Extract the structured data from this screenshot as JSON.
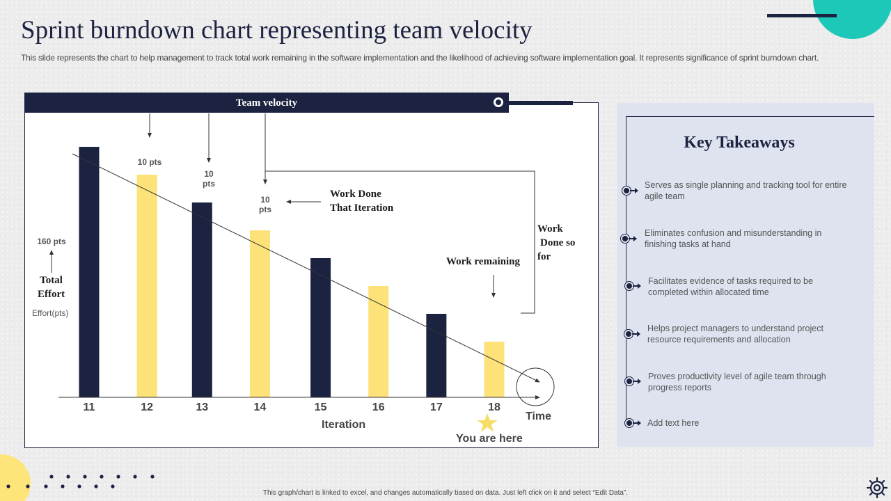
{
  "header": {
    "title": "Sprint burndown chart representing team velocity",
    "subtitle": "This slide represents the chart to help management to track total work remaining in the software implementation and the likelihood of achieving software implementation goal. It represents significance of sprint burndown chart."
  },
  "chart_data": {
    "type": "bar",
    "categories": [
      "11",
      "12",
      "13",
      "14",
      "15",
      "16",
      "17",
      "18"
    ],
    "values": [
      90,
      80,
      70,
      60,
      50,
      40,
      30,
      20
    ],
    "bar_colors": [
      "#1c2340",
      "#fde27a",
      "#1c2340",
      "#fde27a",
      "#1c2340",
      "#fde27a",
      "#1c2340",
      "#fde27a"
    ],
    "ylim": [
      0,
      100
    ],
    "xlabel": "Iteration",
    "ylabel": "Effort(pts)",
    "trend_line": true,
    "grid": false
  },
  "chart_labels": {
    "banner": "Team velocity",
    "pts_a": "10 pts",
    "pts_b_1": "10",
    "pts_b_2": "pts",
    "pts_c_1": "10",
    "pts_c_2": "pts",
    "work_done_iter_1": "Work Done",
    "work_done_iter_2": "That Iteration",
    "work_done_sofar_1": "Work",
    "work_done_sofar_2": "Done so",
    "work_done_sofar_3": "for",
    "work_remaining": "Work remaining",
    "total_pts": "160 pts",
    "total_effort_1": "Total",
    "total_effort_2": "Effort",
    "time": "Time",
    "you_are_here": "You are here"
  },
  "takeaways": {
    "title": "Key Takeaways",
    "items": [
      {
        "line1": "Serves as single planning and tracking tool for entire",
        "line2": "agile team"
      },
      {
        "line1": "Eliminates confusion and misunderstanding in",
        "line2": "finishing tasks at hand"
      },
      {
        "line1": "Facilitates evidence  of tasks required to be",
        "line2": "completed within allocated time"
      },
      {
        "line1": "Helps project managers to understand project",
        "line2": "resource requirements and allocation"
      },
      {
        "line1": "Proves productivity level of agile team through",
        "line2": "progress reports"
      },
      {
        "line1": "Add text here",
        "line2": ""
      }
    ]
  },
  "footer": {
    "note": "This graph/chart is linked to excel, and changes automatically based on data. Just left click on it and select “Edit Data”."
  },
  "colors": {
    "navy": "#1c2340",
    "yellow": "#fde27a",
    "teal": "#1ec8b8"
  }
}
